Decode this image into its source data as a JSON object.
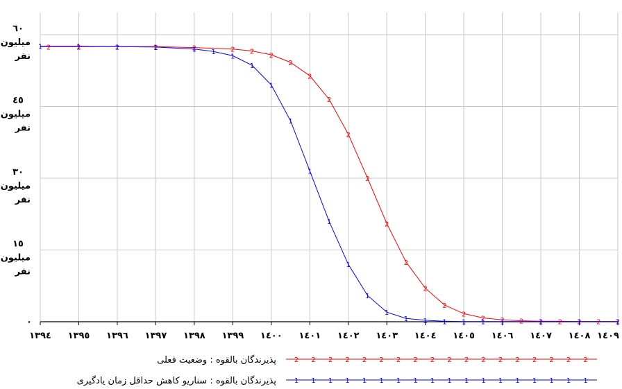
{
  "chart_data": {
    "type": "line",
    "title": "",
    "xlabel": "",
    "ylabel": "",
    "x": [
      1394,
      1395,
      1396,
      1397,
      1398,
      1399,
      1400,
      1401,
      1402,
      1403,
      1404,
      1405,
      1406,
      1407,
      1408,
      1409
    ],
    "x_tick_labels": [
      "۱۳۹٤",
      "۱۳۹٥",
      "۱۳۹٦",
      "۱۳۹۷",
      "۱۳۹۸",
      "۱۳۹۹",
      "۱٤۰۰",
      "۱٤۰۱",
      "۱٤۰۲",
      "۱٤۰۳",
      "۱٤۰٤",
      "۱٤۰٥",
      "۱٤۰٦",
      "۱٤۰۷",
      "۱٤۰۸",
      "۱٤۰۹"
    ],
    "xlim": [
      1394,
      1409
    ],
    "ylim": [
      0,
      60
    ],
    "y_ticks": [
      {
        "value": 60,
        "lines": [
          "٦۰",
          "میلیون",
          "نفر"
        ]
      },
      {
        "value": 45,
        "lines": [
          "٤٥",
          "میلیون",
          "نفر"
        ]
      },
      {
        "value": 30,
        "lines": [
          "۳۰",
          "میلیون",
          "نفر"
        ]
      },
      {
        "value": 15,
        "lines": [
          "۱٥",
          "میلیون",
          "نفر"
        ]
      },
      {
        "value": 0,
        "lines": [
          "۰"
        ]
      }
    ],
    "grid": true,
    "legend_position": "bottom-right",
    "series": [
      {
        "name": "پذیرندگان بالقوه : وضعیت فعلی",
        "marker": "2",
        "color": "#ff0000",
        "x": [
          1394,
          1395,
          1396,
          1397,
          1398,
          1399,
          1399.5,
          1400,
          1400.5,
          1401,
          1401.5,
          1402,
          1402.5,
          1403,
          1403.5,
          1404,
          1404.5,
          1405,
          1405.5,
          1406,
          1406.5,
          1407,
          1407.5,
          1408,
          1408.5,
          1409
        ],
        "values": [
          57.5,
          57.5,
          57.5,
          57.5,
          57.3,
          57.0,
          56.6,
          55.8,
          54.2,
          51.4,
          46.5,
          39.2,
          30.0,
          20.5,
          12.5,
          7.0,
          3.5,
          1.7,
          0.8,
          0.4,
          0.2,
          0.1,
          0.1,
          0.05,
          0.05,
          0.05
        ]
      },
      {
        "name": "پذیرندگان بالقوه : سناریو کاهش حداقل زمان یادگیری",
        "marker": "1",
        "color": "#0000ff",
        "x": [
          1394,
          1395,
          1396,
          1397,
          1398,
          1398.5,
          1399,
          1399.5,
          1400,
          1400.5,
          1401,
          1401.5,
          1402,
          1402.5,
          1403,
          1403.5,
          1404,
          1404.5,
          1405,
          1405.5,
          1406,
          1407,
          1408,
          1409
        ],
        "values": [
          57.6,
          57.6,
          57.5,
          57.4,
          57.0,
          56.5,
          55.6,
          53.6,
          49.5,
          42.0,
          31.5,
          21.0,
          12.0,
          5.5,
          2.0,
          0.7,
          0.3,
          0.1,
          0.05,
          0.05,
          0.05,
          0.05,
          0.05,
          0.05
        ]
      }
    ]
  }
}
